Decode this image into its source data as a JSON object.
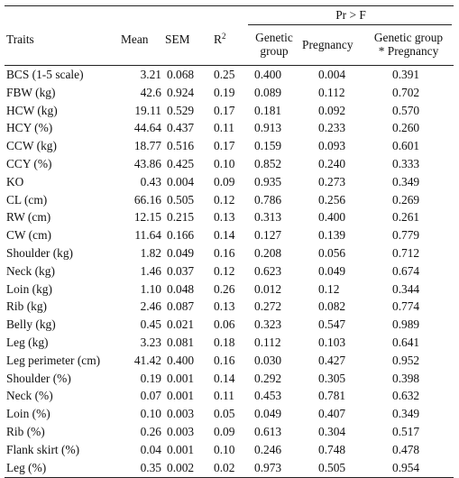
{
  "table": {
    "header": {
      "traits": "Traits",
      "mean": "Mean",
      "sem": "SEM",
      "r2_base": "R",
      "r2_sup": "2",
      "pr_f": "Pr > F",
      "genetic_group_line1": "Genetic",
      "genetic_group_line2": "group",
      "pregnancy": "Pregnancy",
      "interaction_line1": "Genetic group",
      "interaction_line2": "* Pregnancy"
    },
    "rows": [
      {
        "trait": "BCS (1-5 scale)",
        "mean": "3.21",
        "sem": "0.068",
        "r2": "0.25",
        "gg": "0.400",
        "preg": "0.004",
        "int": "0.391"
      },
      {
        "trait": "FBW (kg)",
        "mean": "42.6",
        "sem": "0.924",
        "r2": "0.19",
        "gg": "0.089",
        "preg": "0.112",
        "int": "0.702"
      },
      {
        "trait": "HCW (kg)",
        "mean": "19.11",
        "sem": "0.529",
        "r2": "0.17",
        "gg": "0.181",
        "preg": "0.092",
        "int": "0.570"
      },
      {
        "trait": "HCY (%)",
        "mean": "44.64",
        "sem": "0.437",
        "r2": "0.11",
        "gg": "0.913",
        "preg": "0.233",
        "int": "0.260"
      },
      {
        "trait": "CCW (kg)",
        "mean": "18.77",
        "sem": "0.516",
        "r2": "0.17",
        "gg": "0.159",
        "preg": "0.093",
        "int": "0.601"
      },
      {
        "trait": "CCY (%)",
        "mean": "43.86",
        "sem": "0.425",
        "r2": "0.10",
        "gg": "0.852",
        "preg": "0.240",
        "int": "0.333"
      },
      {
        "trait": "KO",
        "mean": "0.43",
        "sem": "0.004",
        "r2": "0.09",
        "gg": "0.935",
        "preg": "0.273",
        "int": "0.349"
      },
      {
        "trait": "CL (cm)",
        "mean": "66.16",
        "sem": "0.505",
        "r2": "0.12",
        "gg": "0.786",
        "preg": "0.256",
        "int": "0.269"
      },
      {
        "trait": "RW (cm)",
        "mean": "12.15",
        "sem": "0.215",
        "r2": "0.13",
        "gg": "0.313",
        "preg": "0.400",
        "int": "0.261"
      },
      {
        "trait": "CW (cm)",
        "mean": "11.64",
        "sem": "0.166",
        "r2": "0.14",
        "gg": "0.127",
        "preg": "0.139",
        "int": "0.779"
      },
      {
        "trait": "Shoulder (kg)",
        "mean": "1.82",
        "sem": "0.049",
        "r2": "0.16",
        "gg": "0.208",
        "preg": "0.056",
        "int": "0.712"
      },
      {
        "trait": "Neck (kg)",
        "mean": "1.46",
        "sem": "0.037",
        "r2": "0.12",
        "gg": "0.623",
        "preg": "0.049",
        "int": "0.674"
      },
      {
        "trait": "Loin (kg)",
        "mean": "1.10",
        "sem": "0.048",
        "r2": "0.26",
        "gg": "0.012",
        "preg": "0.12",
        "int": "0.344"
      },
      {
        "trait": "Rib (kg)",
        "mean": "2.46",
        "sem": "0.087",
        "r2": "0.13",
        "gg": "0.272",
        "preg": "0.082",
        "int": "0.774"
      },
      {
        "trait": "Belly (kg)",
        "mean": "0.45",
        "sem": "0.021",
        "r2": "0.06",
        "gg": "0.323",
        "preg": "0.547",
        "int": "0.989"
      },
      {
        "trait": "Leg (kg)",
        "mean": "3.23",
        "sem": "0.081",
        "r2": "0.18",
        "gg": "0.112",
        "preg": "0.103",
        "int": "0.641"
      },
      {
        "trait": "Leg perimeter (cm)",
        "mean": "41.42",
        "sem": "0.400",
        "r2": "0.16",
        "gg": "0.030",
        "preg": "0.427",
        "int": "0.952"
      },
      {
        "trait": "Shoulder (%)",
        "mean": "0.19",
        "sem": "0.001",
        "r2": "0.14",
        "gg": "0.292",
        "preg": "0.305",
        "int": "0.398"
      },
      {
        "trait": "Neck (%)",
        "mean": "0.07",
        "sem": "0.001",
        "r2": "0.11",
        "gg": "0.453",
        "preg": "0.781",
        "int": "0.632"
      },
      {
        "trait": "Loin (%)",
        "mean": "0.10",
        "sem": "0.003",
        "r2": "0.05",
        "gg": "0.049",
        "preg": "0.407",
        "int": "0.349"
      },
      {
        "trait": "Rib (%)",
        "mean": "0.26",
        "sem": "0.003",
        "r2": "0.09",
        "gg": "0.613",
        "preg": "0.304",
        "int": "0.517"
      },
      {
        "trait": "Flank skirt (%)",
        "mean": "0.04",
        "sem": "0.001",
        "r2": "0.10",
        "gg": "0.246",
        "preg": "0.748",
        "int": "0.478"
      },
      {
        "trait": "Leg (%)",
        "mean": "0.35",
        "sem": "0.002",
        "r2": "0.02",
        "gg": "0.973",
        "preg": "0.505",
        "int": "0.954"
      }
    ]
  }
}
